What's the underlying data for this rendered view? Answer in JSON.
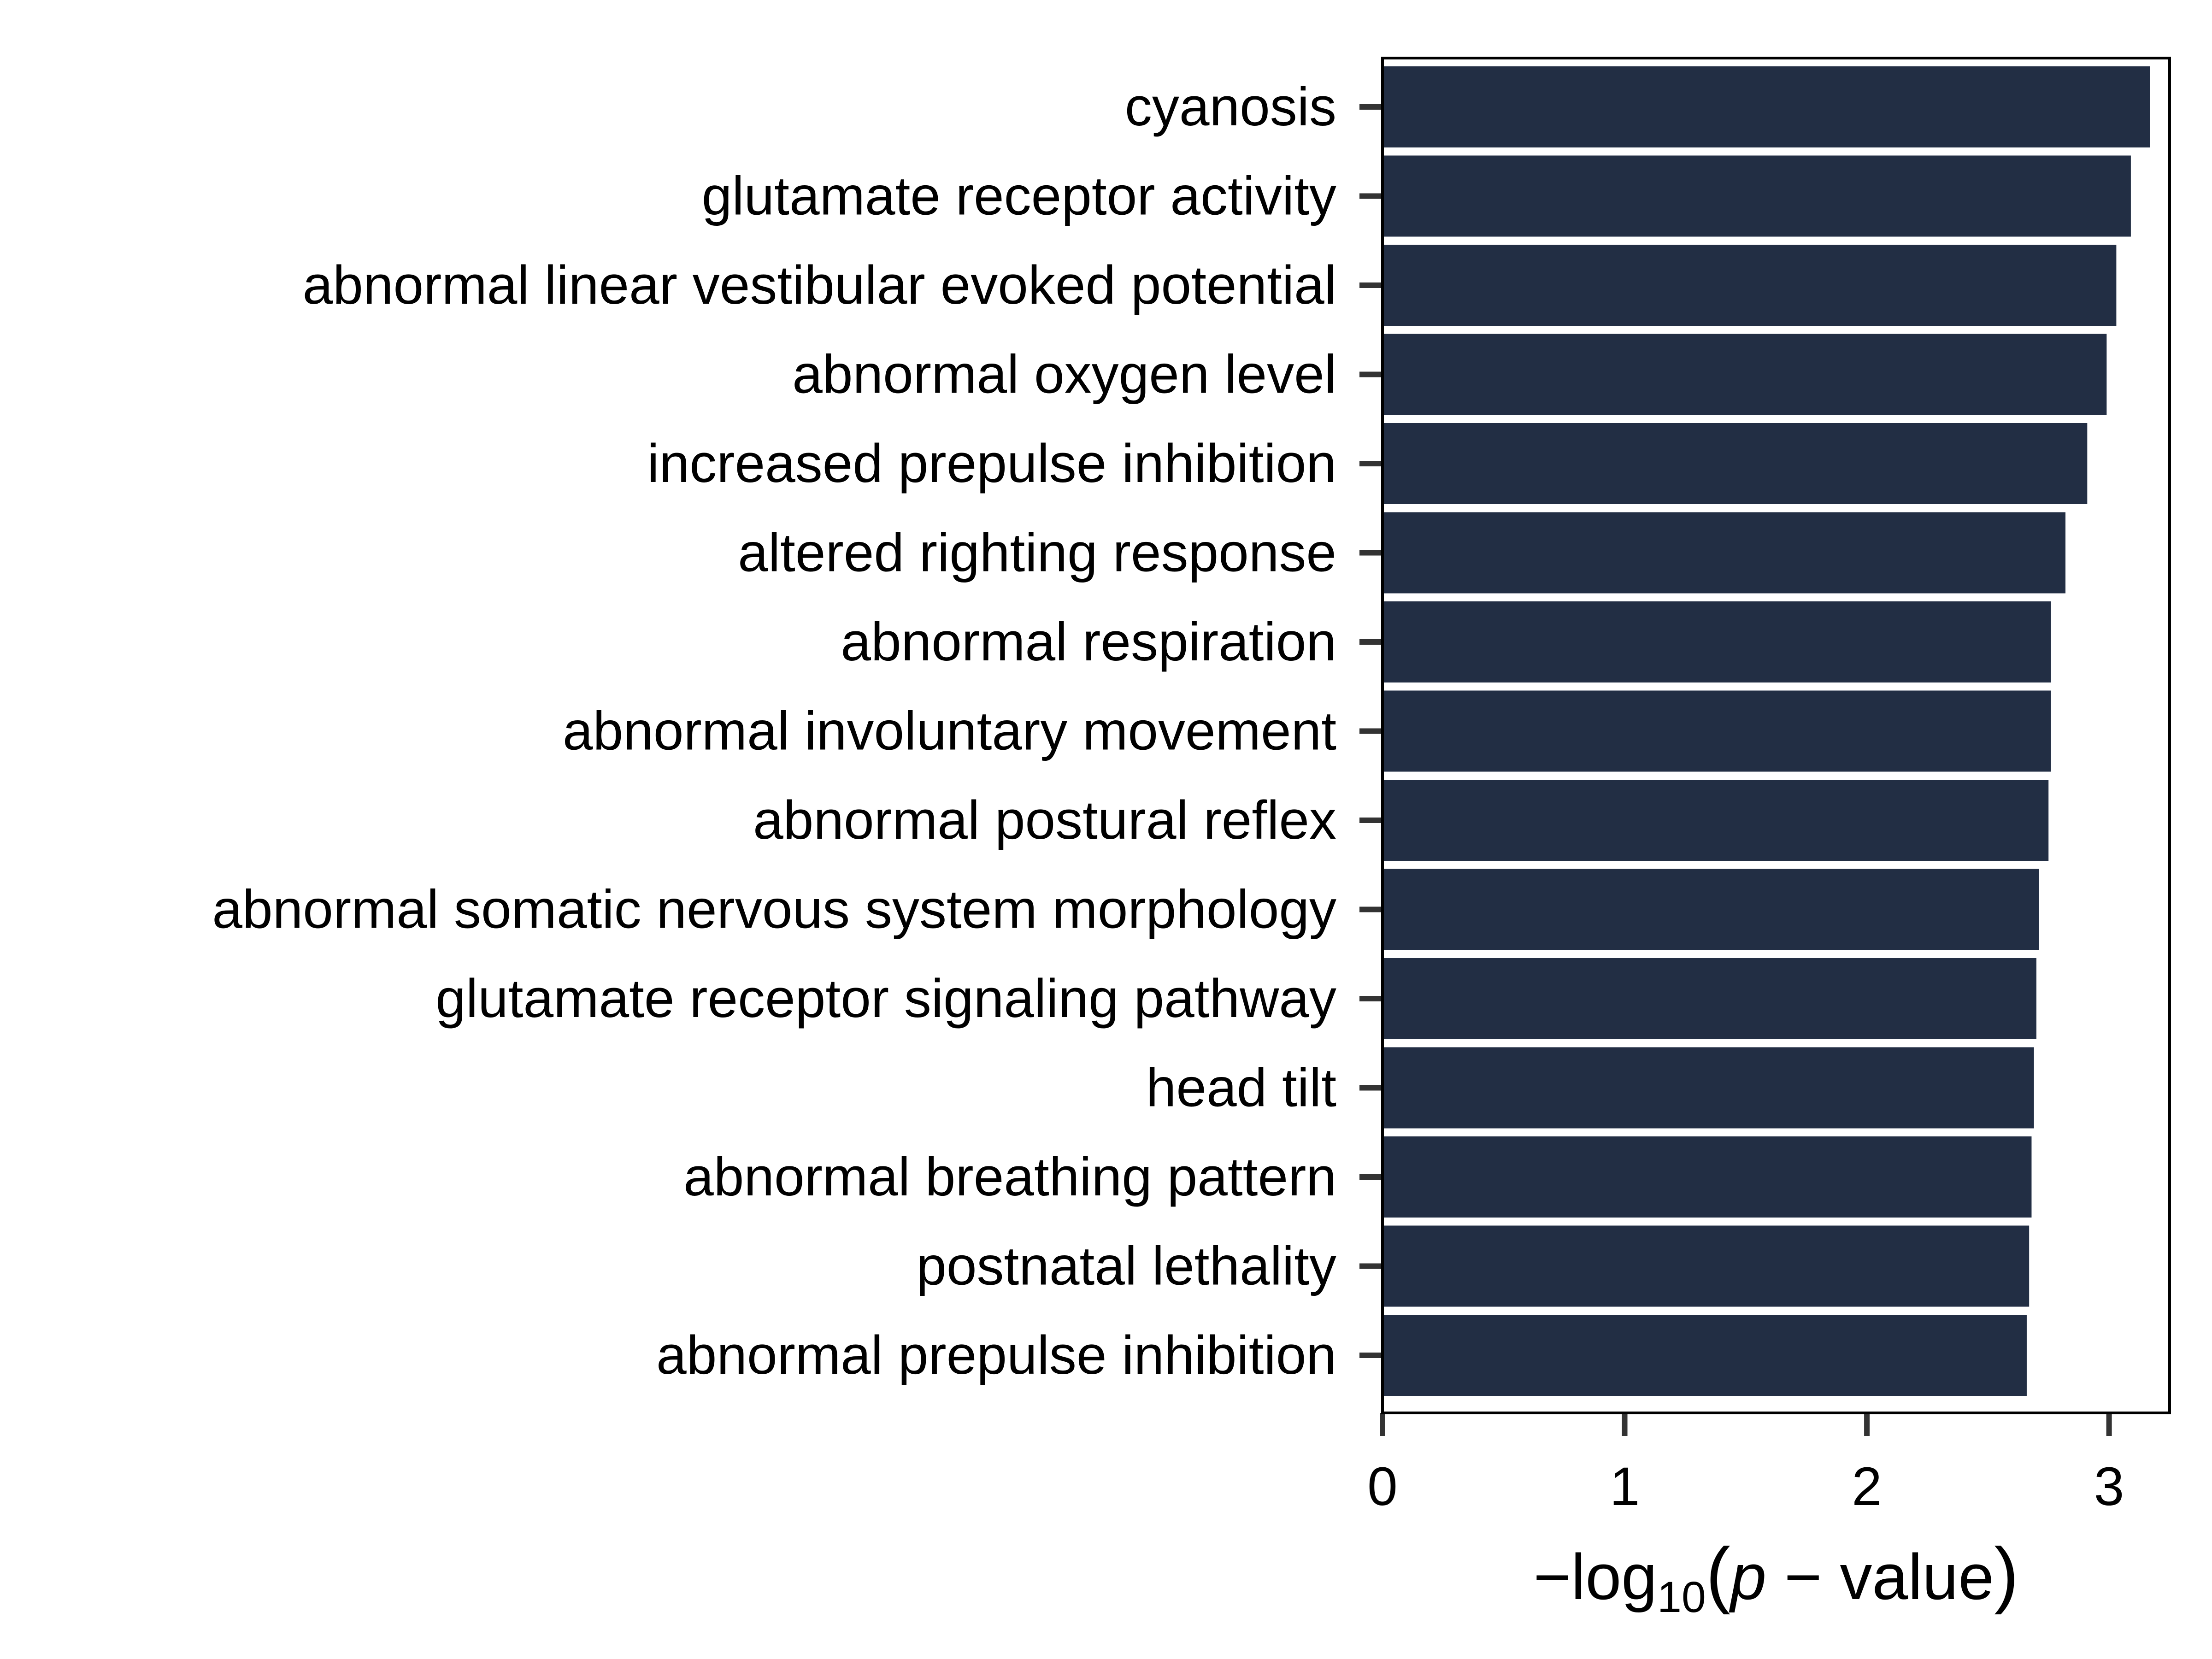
{
  "chart_data": {
    "type": "bar",
    "orientation": "horizontal",
    "title": "",
    "xlabel": "−log10(p − value)",
    "xlabel_parts": {
      "prefix": "−log",
      "subscript": "10",
      "open_paren": "(",
      "italic_var": "p",
      "suffix": " − value",
      "close_paren": ")"
    },
    "ylabel": "",
    "xlim": [
      0,
      3.25
    ],
    "xticks": [
      0,
      1,
      2,
      3
    ],
    "xtick_labels": [
      "0",
      "1",
      "2",
      "3"
    ],
    "categories": [
      "cyanosis",
      "glutamate receptor activity",
      "abnormal linear vestibular evoked potential",
      "abnormal oxygen level",
      "increased prepulse inhibition",
      "altered righting response",
      "abnormal respiration",
      "abnormal involuntary movement",
      "abnormal postural reflex",
      "abnormal somatic nervous system morphology",
      "glutamate receptor signaling pathway",
      "head tilt",
      "abnormal breathing pattern",
      "postnatal lethality",
      "abnormal prepulse inhibition"
    ],
    "values": [
      3.17,
      3.09,
      3.03,
      2.99,
      2.91,
      2.82,
      2.76,
      2.76,
      2.75,
      2.71,
      2.7,
      2.69,
      2.68,
      2.67,
      2.66
    ],
    "bar_color": "#222E44",
    "grid": false,
    "legend": "none"
  }
}
